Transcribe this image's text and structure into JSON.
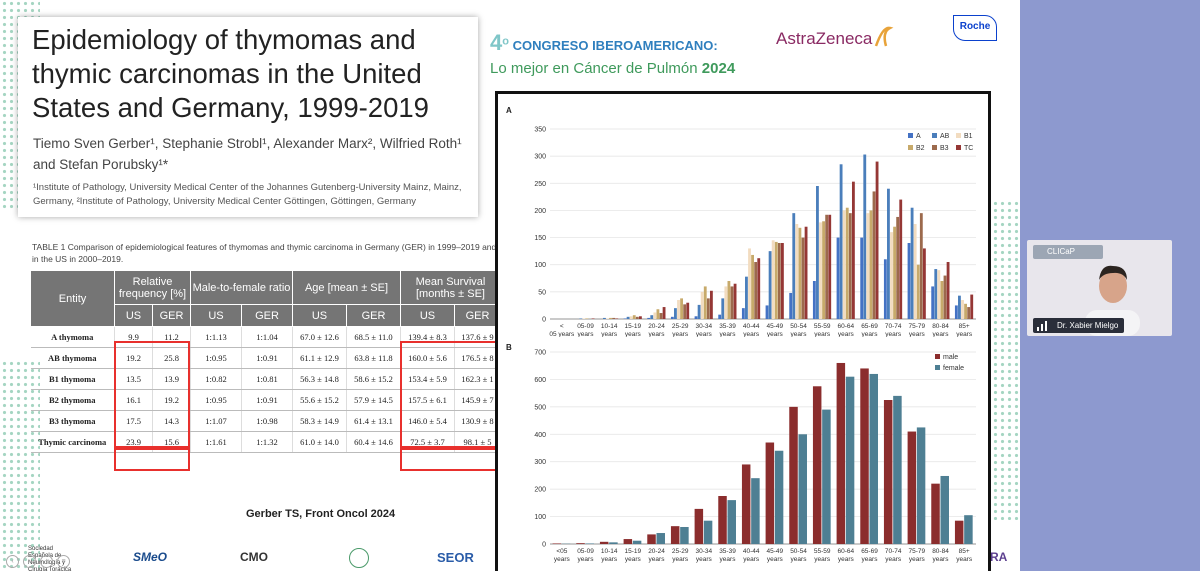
{
  "paper": {
    "title": "Epidemiology of thymomas and thymic carcinomas in the United States and Germany, 1999-2019",
    "authors": "Tiemo Sven Gerber¹, Stephanie Strobl¹, Alexander Marx², Wilfried Roth¹ and Stefan Porubsky¹*",
    "affiliations": "¹Institute of Pathology, University Medical Center of the Johannes Gutenberg-University Mainz, Mainz, Germany, ²Institute of Pathology, University Medical Center Göttingen, Göttingen, Germany"
  },
  "congress": {
    "number": "4",
    "sup": "o",
    "title": "CONGRESO IBEROAMERICANO:",
    "subtitle": "Lo mejor en Cáncer de Pulmón",
    "year": "2024"
  },
  "sponsors": {
    "astrazeneca": "AstraZeneca",
    "roche": "Roche"
  },
  "table": {
    "caption": "TABLE 1  Comparison of epidemiological features of thymomas and thymic carcinoma in Germany (GER) in 1999–2019 and in the US in 2000–2019.",
    "headers": {
      "entity": "Entity",
      "rel_freq": "Relative frequency [%]",
      "ratio": "Male-to-female ratio",
      "age": "Age [mean ± SE]",
      "survival": "Mean Survival [months ± SE]",
      "us": "US",
      "ger": "GER"
    },
    "rows": [
      [
        "A thymoma",
        "9.9",
        "11.2",
        "1:1.13",
        "1:1.04",
        "67.0 ± 12.6",
        "68.5 ± 11.0",
        "139.4 ± 8.3",
        "137.6 ± 9"
      ],
      [
        "AB thymoma",
        "19.2",
        "25.8",
        "1:0.95",
        "1:0.91",
        "61.1 ± 12.9",
        "63.8 ± 11.8",
        "160.0 ± 5.6",
        "176.5 ± 8"
      ],
      [
        "B1 thymoma",
        "13.5",
        "13.9",
        "1:0.82",
        "1:0.81",
        "56.3 ± 14.8",
        "58.6 ± 15.2",
        "153.4 ± 5.9",
        "162.3 ± 1"
      ],
      [
        "B2 thymoma",
        "16.1",
        "19.2",
        "1:0.95",
        "1:0.91",
        "55.6 ± 15.2",
        "57.9 ± 14.5",
        "157.5 ± 6.1",
        "145.9 ± 7"
      ],
      [
        "B3 thymoma",
        "17.5",
        "14.3",
        "1:1.07",
        "1:0.98",
        "58.3 ± 14.9",
        "61.4 ± 13.1",
        "146.0 ± 5.4",
        "130.9 ± 8"
      ],
      [
        "Thymic carcinoma",
        "23.9",
        "15.6",
        "1:1.61",
        "1:1.32",
        "61.0 ± 14.0",
        "60.4 ± 14.6",
        "72.5 ± 3.7",
        "98.1 ± 5"
      ]
    ]
  },
  "citation": "Gerber TS, Front Oncol 2024",
  "footer": {
    "sociedad": "Sociedad Española de Neumología y Cirugía Torácica",
    "smeo": "SMeO",
    "cmo": "CMO",
    "seor": "SEOR",
    "sera": "RA"
  },
  "video": {
    "speaker": "Dr. Xabier Mielgo",
    "app": "CLICaP"
  },
  "colors": {
    "A": "#4472c4",
    "AB": "#4a7ebb",
    "B1": "#f2dcc0",
    "B2": "#c7aa6b",
    "B3": "#9c6a4d",
    "TC": "#953735",
    "male": "#8b2d2d",
    "female": "#4e7f93"
  },
  "chart_data": [
    {
      "type": "bar",
      "panel": "A",
      "ylim": [
        0,
        350
      ],
      "yticks": [
        0,
        50,
        100,
        150,
        200,
        250,
        300,
        350
      ],
      "categories": [
        "< 05 years",
        "05-09 years",
        "10-14 years",
        "15-19 years",
        "20-24 years",
        "25-29 years",
        "30-34 years",
        "35-39 years",
        "40-44 years",
        "45-49 years",
        "50-54 years",
        "55-59 years",
        "60-64 years",
        "65-69 years",
        "70-74 years",
        "75-79 years",
        "80-84 years",
        "85+ years"
      ],
      "series": [
        {
          "name": "A",
          "values": [
            0,
            0,
            0,
            1,
            2,
            4,
            5,
            8,
            20,
            25,
            48,
            70,
            150,
            150,
            110,
            140,
            60,
            25
          ]
        },
        {
          "name": "AB",
          "values": [
            0,
            1,
            2,
            4,
            7,
            20,
            26,
            38,
            78,
            125,
            195,
            245,
            285,
            303,
            240,
            205,
            92,
            43
          ]
        },
        {
          "name": "B1",
          "values": [
            0,
            1,
            1,
            5,
            12,
            35,
            50,
            60,
            130,
            145,
            175,
            178,
            200,
            195,
            160,
            175,
            90,
            35
          ]
        },
        {
          "name": "B2",
          "values": [
            0,
            1,
            2,
            7,
            18,
            38,
            60,
            70,
            118,
            142,
            168,
            180,
            205,
            200,
            170,
            100,
            70,
            28
          ]
        },
        {
          "name": "B3",
          "values": [
            0,
            0,
            2,
            4,
            11,
            27,
            38,
            60,
            105,
            140,
            150,
            192,
            195,
            235,
            188,
            195,
            80,
            22
          ]
        },
        {
          "name": "TC",
          "values": [
            0,
            1,
            1,
            5,
            22,
            30,
            52,
            65,
            112,
            140,
            170,
            192,
            253,
            290,
            220,
            130,
            105,
            45
          ]
        }
      ]
    },
    {
      "type": "bar",
      "panel": "B",
      "ylim": [
        0,
        700
      ],
      "yticks": [
        0,
        100,
        200,
        300,
        400,
        500,
        600,
        700
      ],
      "categories": [
        "<05 years",
        "05-09 years",
        "10-14 years",
        "15-19 years",
        "20-24 years",
        "25-29 years",
        "30-34 years",
        "35-39 years",
        "40-44 years",
        "45-49 years",
        "50-54 years",
        "55-59 years",
        "60-64 years",
        "65-69 years",
        "70-74 years",
        "75-79 years",
        "80-84 years",
        "85+ years"
      ],
      "series": [
        {
          "name": "male",
          "values": [
            2,
            3,
            8,
            18,
            35,
            65,
            128,
            175,
            290,
            370,
            500,
            575,
            660,
            640,
            525,
            410,
            220,
            85
          ]
        },
        {
          "name": "female",
          "values": [
            1,
            2,
            6,
            12,
            40,
            62,
            85,
            160,
            240,
            340,
            400,
            490,
            610,
            620,
            540,
            425,
            248,
            105
          ]
        }
      ]
    }
  ]
}
